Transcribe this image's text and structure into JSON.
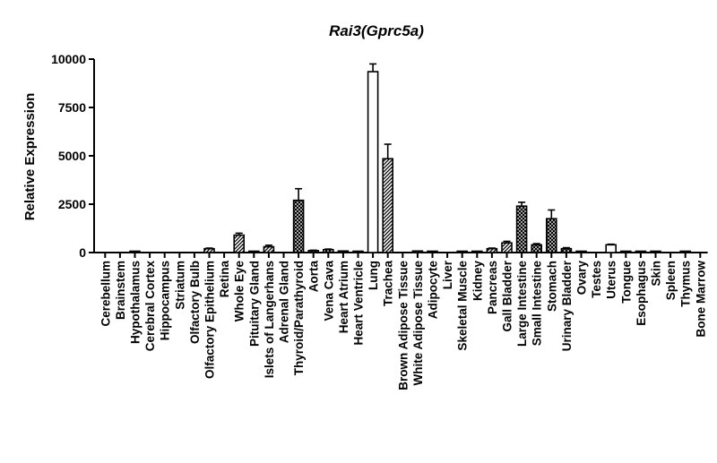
{
  "chart_data": {
    "type": "bar",
    "title": "Rai3(Gprc5a)",
    "xlabel": "",
    "ylabel": "Relative Expression",
    "ylim": [
      0,
      10000
    ],
    "yticks": [
      "0",
      "2500",
      "5000",
      "7500",
      "10000"
    ],
    "ytick_values": [
      0,
      2500,
      5000,
      7500,
      10000
    ],
    "grid": false,
    "legend": "none",
    "categories": [
      "Cerebellum",
      "Brainstem",
      "Hypothalamus",
      "Cerebral Cortex",
      "Hippocampus",
      "Striatum",
      "Olfactory Bulb",
      "Olfactory Epithelium",
      "Retina",
      "Whole Eye",
      "Pituitary Gland",
      "Islets of Langerhans",
      "Adrenal Gland",
      "Thyroid/Parathyroid",
      "Aorta",
      "Vena Cava",
      "Heart Atrium",
      "Heart Ventricle",
      "Lung",
      "Trachea",
      "Brown Adipose Tissue",
      "White Adipose Tissue",
      "Adipocyte",
      "Liver",
      "Skeletal Muscle",
      "Kidney",
      "Pancreas",
      "Gall Bladder",
      "Large Intestine",
      "Small Intestine",
      "Stomach",
      "Urinary Bladder",
      "Ovary",
      "Testes",
      "Uterus",
      "Tongue",
      "Esophagus",
      "Skin",
      "Spleen",
      "Thymus",
      "Bone Marrow"
    ],
    "values": [
      0,
      0,
      20,
      0,
      0,
      0,
      0,
      200,
      0,
      900,
      30,
      300,
      0,
      2700,
      100,
      150,
      80,
      30,
      9350,
      4850,
      0,
      80,
      60,
      0,
      30,
      60,
      200,
      500,
      2400,
      400,
      1750,
      200,
      30,
      0,
      400,
      50,
      40,
      20,
      0,
      20,
      0
    ],
    "errors": [
      0,
      0,
      0,
      0,
      0,
      0,
      0,
      30,
      0,
      100,
      0,
      80,
      0,
      600,
      20,
      30,
      0,
      0,
      400,
      750,
      0,
      0,
      0,
      0,
      0,
      0,
      30,
      80,
      200,
      60,
      450,
      50,
      0,
      0,
      30,
      0,
      0,
      0,
      0,
      0,
      0
    ],
    "patterns": [
      "hatch",
      "hatch",
      "hatch",
      "hatch",
      "hatch",
      "hatch",
      "hatch",
      "hatch",
      "hatch",
      "hatch",
      "hatch",
      "hatch",
      "hatch",
      "cross",
      "cross",
      "cross",
      "cross",
      "cross",
      "open",
      "hatch",
      "hatch",
      "hatch",
      "hatch",
      "hatch",
      "hatch",
      "hatch",
      "hatch",
      "hatch",
      "cross",
      "cross",
      "cross",
      "cross",
      "open",
      "open",
      "open",
      "open",
      "open",
      "open",
      "open",
      "open",
      "open"
    ],
    "colors": {
      "stroke": "#000000",
      "fill": "#ffffff"
    }
  }
}
